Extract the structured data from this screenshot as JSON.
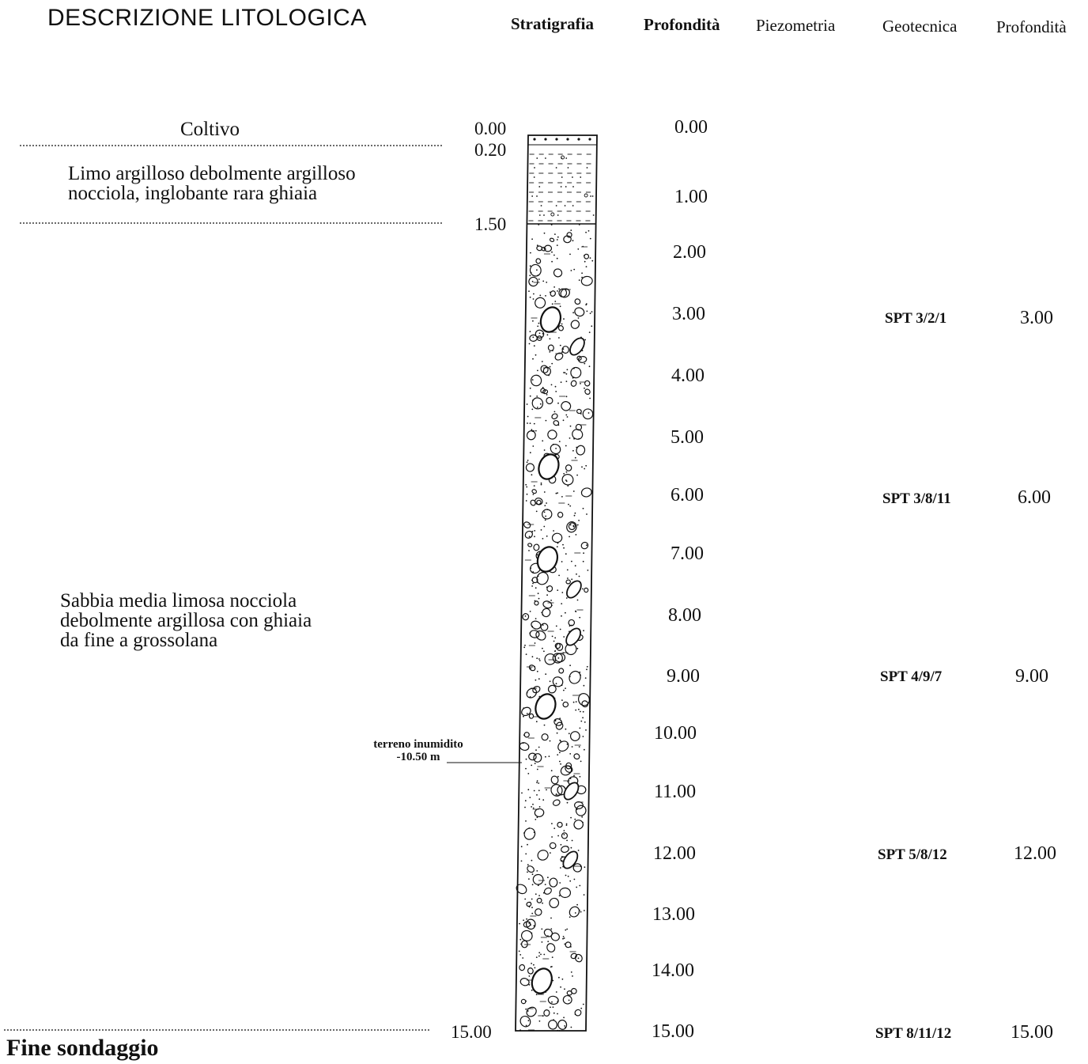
{
  "header": {
    "title": "DESCRIZIONE  LITOLOGICA",
    "columns": {
      "stratigrafia": "Stratigrafia",
      "profondita_1": "Profondità",
      "piezometria": "Piezometria",
      "geotecnica": "Geotecnica",
      "profondita_2": "Profondità"
    }
  },
  "layers": [
    {
      "description": "Coltivo",
      "top_label": "0.00",
      "bottom_label": "0.20",
      "pattern": "topsoil"
    },
    {
      "description": "Limo argilloso debolmente argilloso\nnocciola, inglobante rara ghiaia",
      "bottom_label": "1.50",
      "pattern": "silt-clay"
    },
    {
      "description": "Sabbia media limosa nocciola\ndebolmente argillosa con ghiaia\nda fine a grossolana",
      "bottom_label": "15.00",
      "pattern": "sand-gravel"
    }
  ],
  "depth_scale": [
    "0.00",
    "1.00",
    "2.00",
    "3.00",
    "4.00",
    "5.00",
    "6.00",
    "7.00",
    "8.00",
    "9.00",
    "10.00",
    "11.00",
    "12.00",
    "13.00",
    "14.00",
    "15.00"
  ],
  "water_note": {
    "label": "terreno inumidito",
    "depth": "-10.50 m",
    "depth_value": 10.5
  },
  "geotechnical_tests": [
    {
      "label": "SPT 3/2/1",
      "depth": "3.00"
    },
    {
      "label": "SPT 3/8/11",
      "depth": "6.00"
    },
    {
      "label": "SPT 4/9/7",
      "depth": "9.00"
    },
    {
      "label": "SPT 5/8/12",
      "depth": "12.00"
    },
    {
      "label": "SPT 8/11/12",
      "depth": "15.00"
    }
  ],
  "footer": {
    "end_label": "Fine sondaggio"
  },
  "colors": {
    "ink": "#111111",
    "background": "#ffffff"
  }
}
